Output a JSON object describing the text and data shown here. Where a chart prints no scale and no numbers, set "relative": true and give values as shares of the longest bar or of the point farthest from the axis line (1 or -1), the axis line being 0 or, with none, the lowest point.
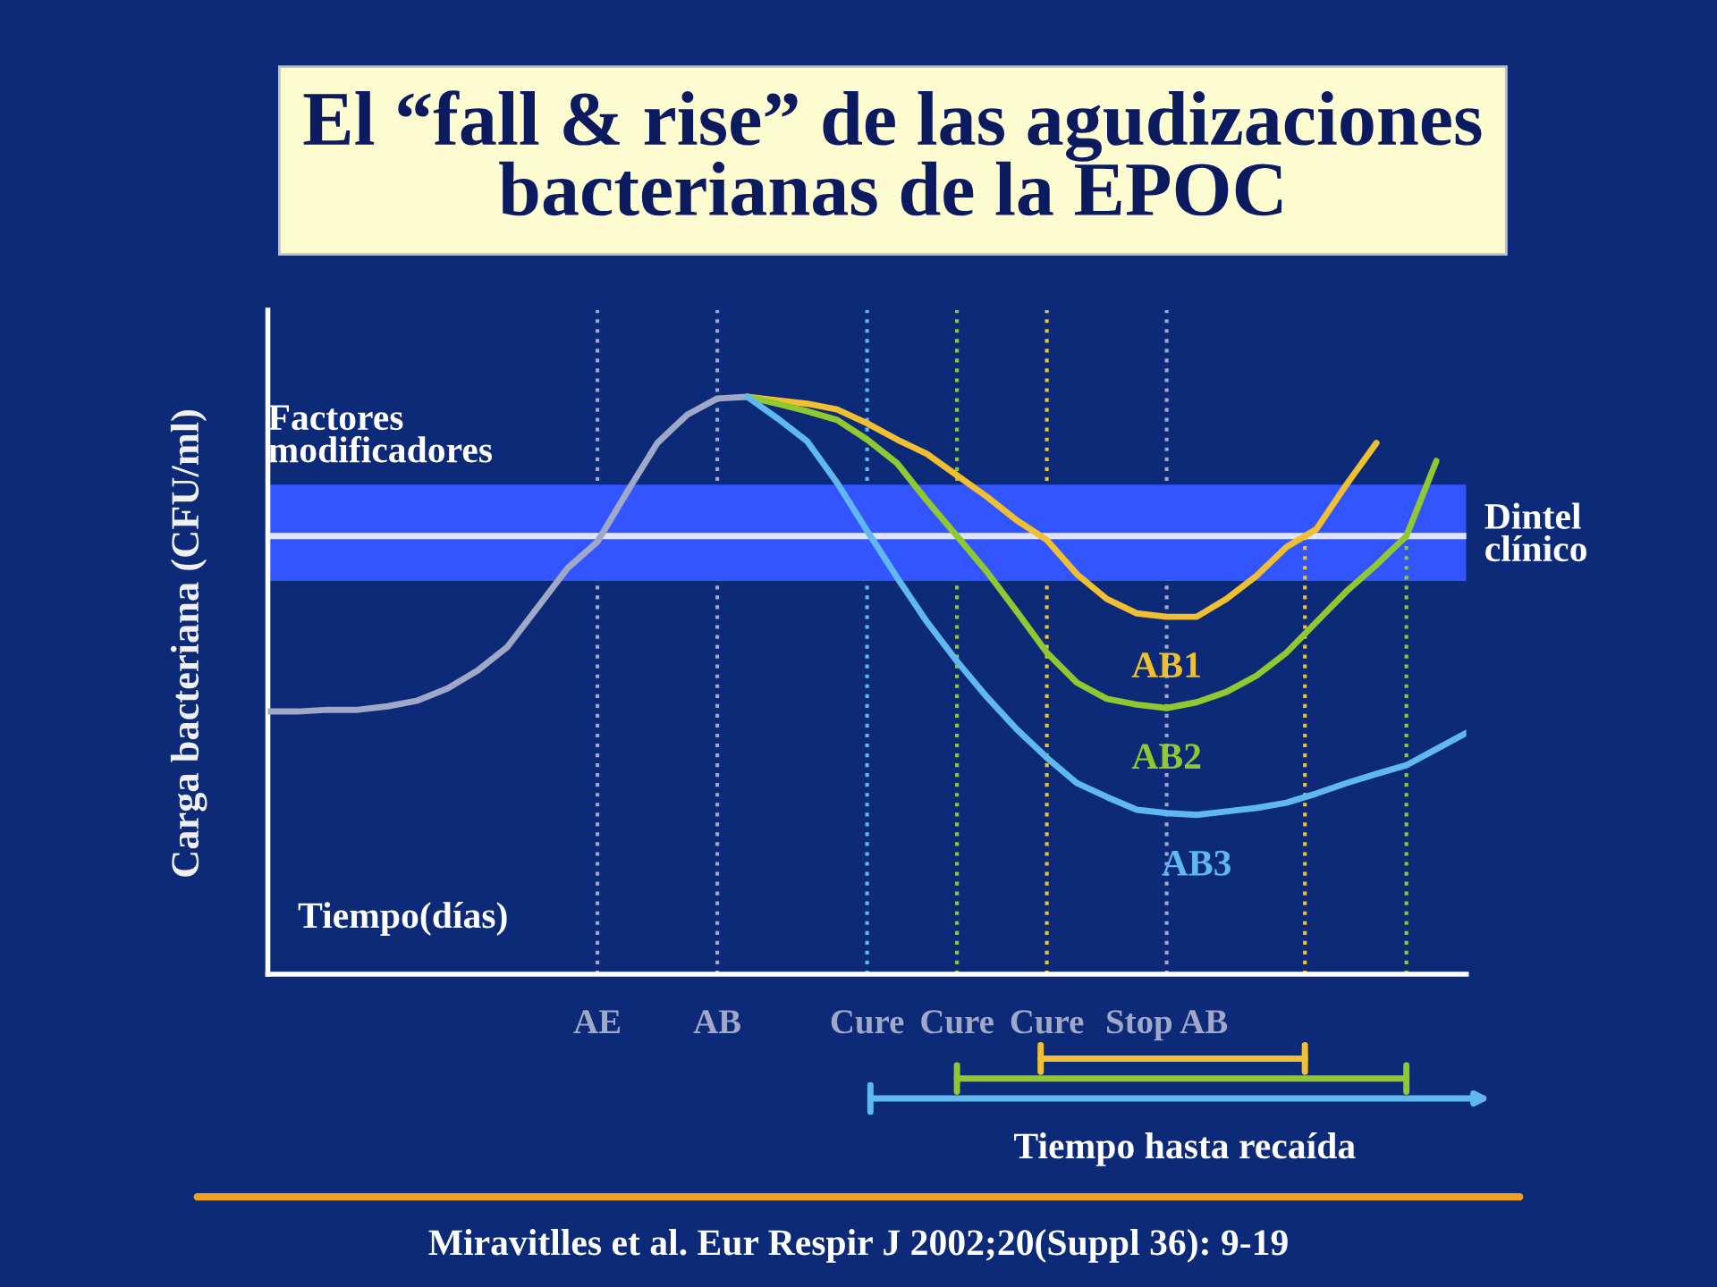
{
  "chart_data": {
    "type": "line",
    "relative": true,
    "title": "El “fall & rise” de las agudizaciones bacterianas de la EPOC",
    "xlabel": "Tiempo(días)",
    "ylabel": "Carga bacteriana (CFU/ml)",
    "categories": [
      null,
      null,
      null,
      null,
      null,
      null,
      null,
      null,
      null,
      null,
      null,
      "AE",
      null,
      null,
      null,
      "AB",
      null,
      null,
      null,
      null,
      "Cure",
      null,
      null,
      "Cure",
      null,
      null,
      "Cure",
      null,
      null,
      null,
      "Stop AB",
      null,
      null,
      null,
      null,
      null,
      null,
      null,
      null,
      null,
      null
    ],
    "series": [
      {
        "color": "#a0a8c8",
        "values": [
          0.455,
          0.455,
          0.458,
          0.458,
          0.464,
          0.474,
          0.495,
          0.526,
          0.567,
          0.635,
          0.703,
          0.749,
          0.836,
          0.92,
          0.969,
          0.997,
          1.0,
          null,
          null,
          null,
          null,
          null,
          null,
          null,
          null,
          null,
          null,
          null,
          null,
          null,
          null,
          null,
          null,
          null,
          null,
          null,
          null,
          null,
          null,
          null,
          null
        ]
      },
      {
        "name": "AB1",
        "color": "#f0c030",
        "values": [
          null,
          null,
          null,
          null,
          null,
          null,
          null,
          null,
          null,
          null,
          null,
          null,
          null,
          null,
          null,
          null,
          1.0,
          0.994,
          0.988,
          0.978,
          0.954,
          0.926,
          0.901,
          0.864,
          0.827,
          0.786,
          0.752,
          0.693,
          0.65,
          0.625,
          0.619,
          0.619,
          0.65,
          0.69,
          0.74,
          0.771,
          0.848,
          0.92,
          null,
          null,
          null
        ]
      },
      {
        "name": "AB2",
        "color": "#90c830",
        "values": [
          null,
          null,
          null,
          null,
          null,
          null,
          null,
          null,
          null,
          null,
          null,
          null,
          null,
          null,
          null,
          null,
          1.0,
          0.988,
          0.975,
          0.96,
          0.926,
          0.885,
          0.82,
          0.759,
          0.697,
          0.628,
          0.557,
          0.505,
          0.477,
          0.467,
          0.461,
          0.471,
          0.489,
          0.517,
          0.557,
          0.61,
          0.663,
          0.709,
          0.759,
          0.889,
          null
        ]
      },
      {
        "name": "AB3",
        "color": "#60b8f0",
        "values": [
          null,
          null,
          null,
          null,
          null,
          null,
          null,
          null,
          null,
          null,
          null,
          null,
          null,
          null,
          null,
          null,
          1.0,
          0.963,
          0.923,
          0.851,
          0.768,
          0.687,
          0.61,
          0.542,
          0.48,
          0.424,
          0.375,
          0.331,
          0.307,
          0.285,
          0.279,
          0.276,
          0.282,
          0.288,
          0.297,
          0.313,
          0.331,
          0.347,
          0.362,
          0.39,
          0.418
        ]
      }
    ],
    "bands": [
      {
        "axis": "y",
        "from": 0.681,
        "to": 0.848,
        "label": "Factores modificadores",
        "color": "#3355ff"
      }
    ],
    "ref_lines": [
      {
        "axis": "y",
        "value": 0.759,
        "label": "Dintel clínico",
        "color": "#e0e4ff",
        "line_style": "solid"
      }
    ],
    "annotations": [
      "Tiempo hasta recaída",
      "Miravitlles et al. Eur Respir J 2002;20(Suppl 36): 9-19"
    ],
    "grid": "x",
    "legend": false,
    "line_style": "solid",
    "marker": "none"
  }
}
